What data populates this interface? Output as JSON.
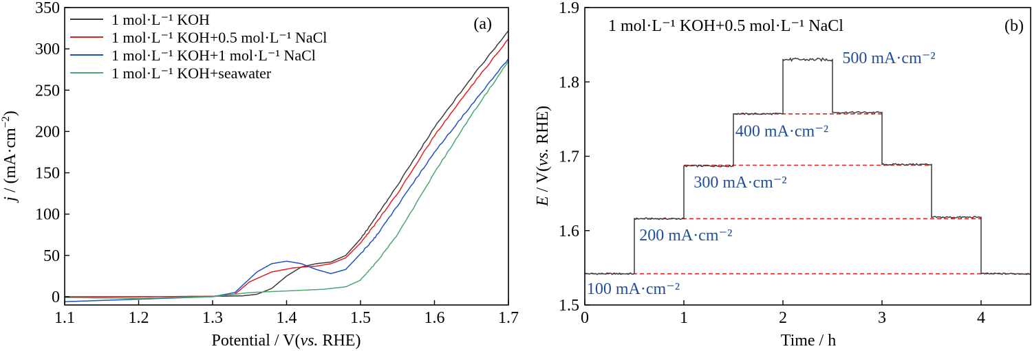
{
  "chart_data": [
    {
      "type": "line",
      "panel_label": "(a)",
      "xlabel_main": "Potential / V(",
      "xlabel_italic": "vs.",
      "xlabel_end": " RHE)",
      "ylabel_italic": "j",
      "ylabel_rest": " / (mA·cm",
      "ylabel_sup": "−2",
      "ylabel_close": ")",
      "xlim": [
        1.1,
        1.7
      ],
      "ylim": [
        -10,
        350
      ],
      "x_ticks": [
        "1.1",
        "1.2",
        "1.3",
        "1.4",
        "1.5",
        "1.6",
        "1.7"
      ],
      "y_ticks": [
        "0",
        "50",
        "100",
        "150",
        "200",
        "250",
        "300",
        "350"
      ],
      "legend_position": "top-left",
      "series": [
        {
          "name": "1 mol·L⁻¹ KOH",
          "color": "#3a3a3a",
          "points": [
            [
              1.1,
              0
            ],
            [
              1.2,
              0
            ],
            [
              1.3,
              0.5
            ],
            [
              1.34,
              1
            ],
            [
              1.36,
              3
            ],
            [
              1.38,
              10
            ],
            [
              1.4,
              25
            ],
            [
              1.42,
              36
            ],
            [
              1.44,
              40
            ],
            [
              1.46,
              42
            ],
            [
              1.48,
              50
            ],
            [
              1.5,
              70
            ],
            [
              1.52,
              95
            ],
            [
              1.55,
              135
            ],
            [
              1.6,
              205
            ],
            [
              1.65,
              265
            ],
            [
              1.7,
              322
            ]
          ]
        },
        {
          "name": "1 mol·L⁻¹ KOH+0.5 mol·L⁻¹ NaCl",
          "color": "#e02020",
          "points": [
            [
              1.1,
              0
            ],
            [
              1.2,
              0
            ],
            [
              1.3,
              0.5
            ],
            [
              1.33,
              3
            ],
            [
              1.35,
              18
            ],
            [
              1.38,
              30
            ],
            [
              1.41,
              35
            ],
            [
              1.44,
              37
            ],
            [
              1.46,
              40
            ],
            [
              1.48,
              47
            ],
            [
              1.5,
              65
            ],
            [
              1.52,
              88
            ],
            [
              1.55,
              125
            ],
            [
              1.6,
              195
            ],
            [
              1.65,
              255
            ],
            [
              1.7,
              312
            ]
          ]
        },
        {
          "name": "1 mol·L⁻¹ KOH+1 mol·L⁻¹ NaCl",
          "color": "#2050c0",
          "points": [
            [
              1.1,
              -6
            ],
            [
              1.2,
              -3
            ],
            [
              1.3,
              0
            ],
            [
              1.33,
              5
            ],
            [
              1.36,
              30
            ],
            [
              1.38,
              40
            ],
            [
              1.4,
              43
            ],
            [
              1.42,
              40
            ],
            [
              1.44,
              33
            ],
            [
              1.46,
              28
            ],
            [
              1.48,
              33
            ],
            [
              1.5,
              52
            ],
            [
              1.52,
              72
            ],
            [
              1.55,
              110
            ],
            [
              1.6,
              175
            ],
            [
              1.65,
              232
            ],
            [
              1.7,
              288
            ]
          ]
        },
        {
          "name": "1 mol·L⁻¹ KOH+seawater",
          "color": "#4aa870",
          "points": [
            [
              1.1,
              -1
            ],
            [
              1.2,
              -2
            ],
            [
              1.3,
              0
            ],
            [
              1.35,
              5
            ],
            [
              1.4,
              7
            ],
            [
              1.45,
              9
            ],
            [
              1.48,
              12
            ],
            [
              1.5,
              20
            ],
            [
              1.52,
              40
            ],
            [
              1.55,
              75
            ],
            [
              1.6,
              150
            ],
            [
              1.65,
              220
            ],
            [
              1.7,
              285
            ]
          ]
        }
      ]
    },
    {
      "type": "line",
      "panel_label": "(b)",
      "title": "1 mol·L⁻¹ KOH+0.5 mol·L⁻¹ NaCl",
      "xlabel": "Time / h",
      "ylabel_italic": "E",
      "ylabel_main": " / V(",
      "ylabel_vs": "vs.",
      "ylabel_end": " RHE)",
      "xlim": [
        0,
        4.5
      ],
      "ylim": [
        1.5,
        1.9
      ],
      "x_ticks": [
        "0",
        "1",
        "2",
        "3",
        "4"
      ],
      "y_ticks": [
        "1.5",
        "1.6",
        "1.7",
        "1.8",
        "1.9"
      ],
      "trace_color": "#3a3a3a",
      "reference_color": "#e02020",
      "label_color": "#1f4e99",
      "steps": [
        {
          "t_start": 0.0,
          "t_end": 0.5,
          "potential": 1.542,
          "current": "100 mA·cm⁻²"
        },
        {
          "t_start": 0.5,
          "t_end": 1.0,
          "potential": 1.616,
          "current": "200 mA·cm⁻²"
        },
        {
          "t_start": 1.0,
          "t_end": 1.5,
          "potential": 1.687,
          "current": "300 mA·cm⁻²"
        },
        {
          "t_start": 1.5,
          "t_end": 2.0,
          "potential": 1.757,
          "current": "400 mA·cm⁻²"
        },
        {
          "t_start": 2.0,
          "t_end": 2.5,
          "potential": 1.83,
          "current": "500 mA·cm⁻²"
        },
        {
          "t_start": 2.5,
          "t_end": 3.0,
          "potential": 1.759,
          "current": ""
        },
        {
          "t_start": 3.0,
          "t_end": 3.5,
          "potential": 1.689,
          "current": ""
        },
        {
          "t_start": 3.5,
          "t_end": 4.0,
          "potential": 1.618,
          "current": ""
        },
        {
          "t_start": 4.0,
          "t_end": 4.5,
          "potential": 1.542,
          "current": ""
        }
      ],
      "reference_lines": [
        {
          "potential": 1.542,
          "t_start": 0.0,
          "t_end": 4.5
        },
        {
          "potential": 1.616,
          "t_start": 0.5,
          "t_end": 4.0
        },
        {
          "potential": 1.688,
          "t_start": 1.0,
          "t_end": 3.5
        },
        {
          "potential": 1.757,
          "t_start": 1.5,
          "t_end": 3.0
        }
      ]
    }
  ]
}
